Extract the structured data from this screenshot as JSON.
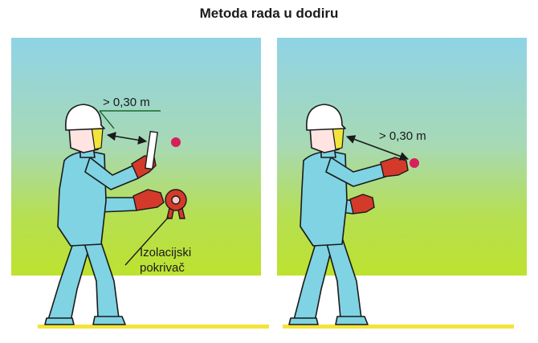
{
  "title": "Metoda rada u dodiru",
  "left_panel": {
    "distance_label": "> 0,30 m",
    "cover_label_line1": "Izolacijski",
    "cover_label_line2": "pokrivač"
  },
  "right_panel": {
    "distance_label": "> 0,30 m"
  },
  "colors": {
    "sky": "#8fd3e6",
    "grass": "#b8e03a",
    "ground": "#f3e43a",
    "suit": "#7fd3e3",
    "glove": "#d43a2a",
    "ball": "#d81e5b",
    "helmet": "#ffffff",
    "outline": "#1a1a1a",
    "dimension_line": "#1a6a2a"
  }
}
